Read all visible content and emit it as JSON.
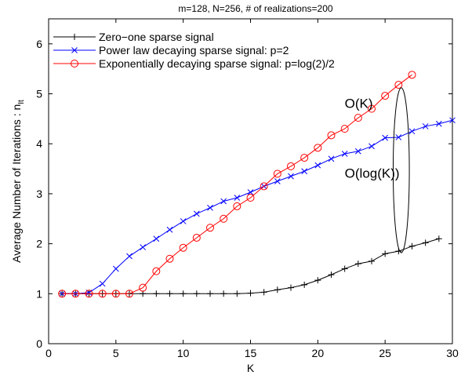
{
  "chart_data": {
    "type": "line",
    "title": "m=128, N=256, # of realizations=200",
    "xlabel": "K",
    "ylabel": "Average Number of Iterations : n",
    "ylabel_sub": "It",
    "xlim": [
      0,
      30
    ],
    "ylim": [
      0,
      6.5
    ],
    "xticks": [
      0,
      5,
      10,
      15,
      20,
      25,
      30
    ],
    "yticks": [
      0,
      1,
      2,
      3,
      4,
      5,
      6
    ],
    "grid": false,
    "legend_position": "top-left",
    "series": [
      {
        "name": "Zero−one sparse signal",
        "color": "#000000",
        "marker": "plus",
        "x": [
          1,
          2,
          3,
          4,
          5,
          6,
          7,
          8,
          9,
          10,
          11,
          12,
          13,
          14,
          15,
          16,
          17,
          18,
          19,
          20,
          21,
          22,
          23,
          24,
          25,
          26,
          27,
          28,
          29
        ],
        "y": [
          1,
          1,
          1,
          1,
          1,
          1,
          1,
          1,
          1,
          1,
          1,
          1,
          1,
          1,
          1.01,
          1.03,
          1.08,
          1.12,
          1.18,
          1.27,
          1.38,
          1.5,
          1.6,
          1.65,
          1.8,
          1.85,
          1.95,
          2.02,
          2.1
        ]
      },
      {
        "name": "Power law decaying sparse signal: p=2",
        "color": "#0000ff",
        "marker": "x",
        "x": [
          1,
          2,
          3,
          4,
          5,
          6,
          7,
          8,
          9,
          10,
          11,
          12,
          13,
          14,
          15,
          16,
          17,
          18,
          19,
          20,
          21,
          22,
          23,
          24,
          25,
          26,
          27,
          28,
          29,
          30
        ],
        "y": [
          1,
          1,
          1.02,
          1.2,
          1.5,
          1.75,
          1.93,
          2.1,
          2.28,
          2.45,
          2.6,
          2.72,
          2.85,
          2.92,
          3.03,
          3.15,
          3.25,
          3.35,
          3.45,
          3.57,
          3.7,
          3.8,
          3.85,
          3.95,
          4.12,
          4.13,
          4.25,
          4.35,
          4.4,
          4.47
        ]
      },
      {
        "name": "Exponentially decaying sparse signal: p=log(2)/2",
        "color": "#ff0000",
        "marker": "circle",
        "x": [
          1,
          2,
          3,
          4,
          5,
          6,
          7,
          8,
          9,
          10,
          11,
          12,
          13,
          14,
          15,
          16,
          17,
          18,
          19,
          20,
          21,
          22,
          23,
          24,
          25,
          26,
          27
        ],
        "y": [
          1,
          1,
          1,
          1,
          1,
          1,
          1.12,
          1.45,
          1.7,
          1.92,
          2.12,
          2.32,
          2.5,
          2.75,
          2.92,
          3.15,
          3.4,
          3.55,
          3.72,
          3.92,
          4.17,
          4.3,
          4.52,
          4.7,
          4.96,
          5.18,
          5.38
        ]
      }
    ],
    "annotations": [
      {
        "text": "O(K)",
        "x": 22.0,
        "y": 4.72
      },
      {
        "text": "O(log(K))",
        "x": 22.0,
        "y": 3.32
      }
    ],
    "ellipse": {
      "cx": 26.2,
      "cy": 3.47,
      "rx": 0.6,
      "ry": 1.65
    }
  }
}
